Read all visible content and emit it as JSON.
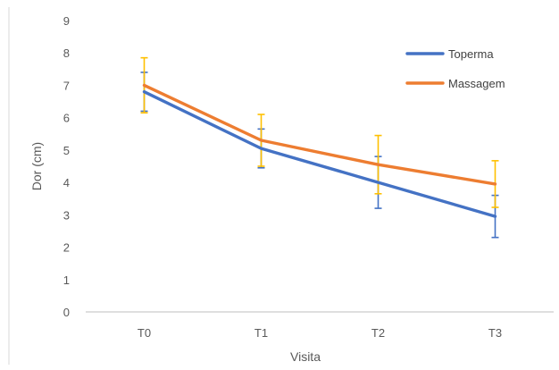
{
  "chart_data": {
    "type": "line",
    "title": "",
    "xlabel": "Visita",
    "ylabel": "Dor (cm)",
    "ylim": [
      0,
      9
    ],
    "yticks": [
      "0",
      "1",
      "2",
      "3",
      "4",
      "5",
      "6",
      "7",
      "8",
      "9"
    ],
    "categories": [
      "T0",
      "T1",
      "T2",
      "T3"
    ],
    "grid": false,
    "legend_position": "top-right",
    "series": [
      {
        "name": "Toperma",
        "color": "#4472C4",
        "errorbar_color": "#4472C4",
        "values": [
          6.8,
          5.05,
          4.0,
          2.95
        ],
        "error": [
          0.6,
          0.6,
          0.8,
          0.65
        ]
      },
      {
        "name": "Massagem",
        "color": "#ED7D31",
        "errorbar_color": "#FFC000",
        "values": [
          7.0,
          5.3,
          4.55,
          3.95
        ],
        "error": [
          0.85,
          0.8,
          0.9,
          0.72
        ]
      }
    ]
  }
}
